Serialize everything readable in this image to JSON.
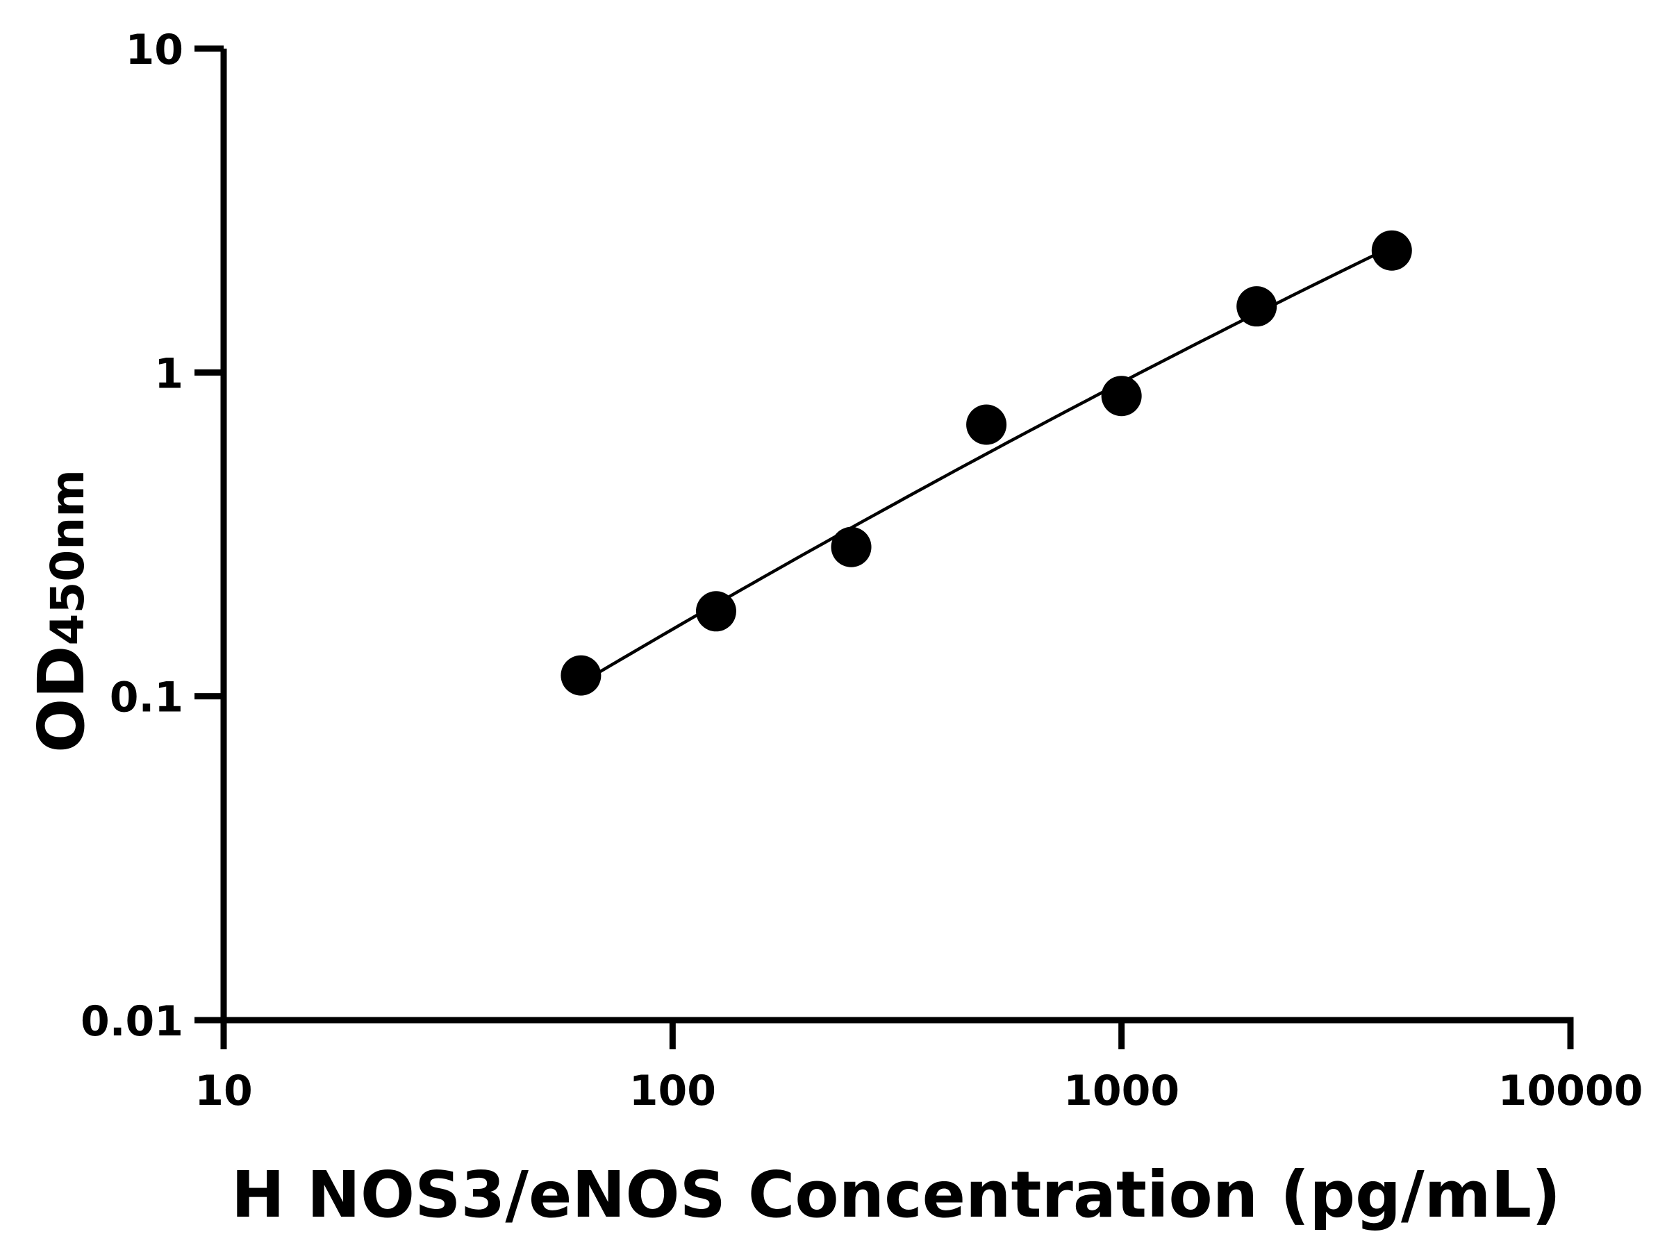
{
  "chart_data": {
    "type": "scatter",
    "title": "",
    "xlabel": "H NOS3/eNOS Concentration (pg/mL)",
    "ylabel_main": "OD",
    "ylabel_sub": "450nm",
    "x_scale": "log",
    "y_scale": "log",
    "xlim": [
      10,
      10000
    ],
    "ylim": [
      0.01,
      10
    ],
    "x_ticks": [
      "10",
      "100",
      "1000",
      "10000"
    ],
    "y_ticks": [
      "0.01",
      "0.1",
      "1",
      "10"
    ],
    "grid": false,
    "legend": "none",
    "series": [
      {
        "x": [
          62.5,
          125,
          250,
          500,
          1000,
          2000,
          4000
        ],
        "y": [
          0.116,
          0.183,
          0.289,
          0.69,
          0.846,
          1.6,
          2.38
        ],
        "marker": "filled-circle",
        "fit_line": true
      }
    ],
    "colors": {
      "points": "#000000",
      "line": "#000000",
      "axes": "#000000"
    }
  }
}
